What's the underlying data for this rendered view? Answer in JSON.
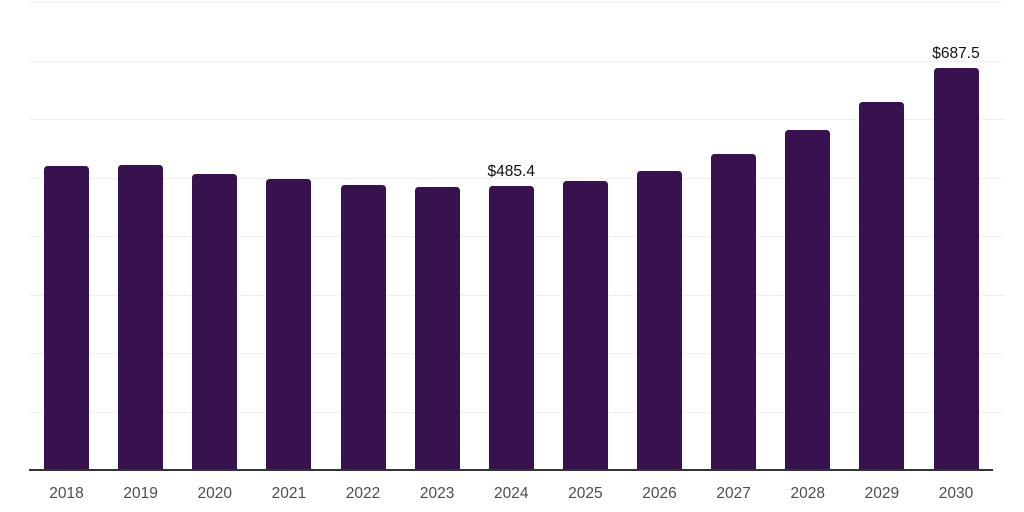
{
  "chart_data": {
    "type": "bar",
    "title": "",
    "categories": [
      "2018",
      "2019",
      "2020",
      "2021",
      "2022",
      "2023",
      "2024",
      "2025",
      "2026",
      "2027",
      "2028",
      "2029",
      "2030"
    ],
    "values": [
      520.4,
      522.2,
      506.0,
      497.4,
      487.8,
      483.7,
      485.4,
      493.4,
      510.6,
      540.3,
      580.5,
      629.6,
      687.5
    ],
    "data_labels": [
      "",
      "",
      "",
      "",
      "",
      "",
      "$485.4",
      "",
      "",
      "",
      "",
      "",
      "$687.5"
    ],
    "value_prefix": "$",
    "xlabel": "",
    "ylabel": "",
    "ylim": [
      0,
      800
    ],
    "grid_interval": 100,
    "grid": "horizontal",
    "legend": "none",
    "y_axis_tick_labels_visible": false,
    "colors": {
      "bar": "#38124e",
      "axis_line": "#333333",
      "gridline": "#efefef",
      "tick_label": "#4d4d4d",
      "data_label": "#111111",
      "background": "#ffffff"
    }
  }
}
